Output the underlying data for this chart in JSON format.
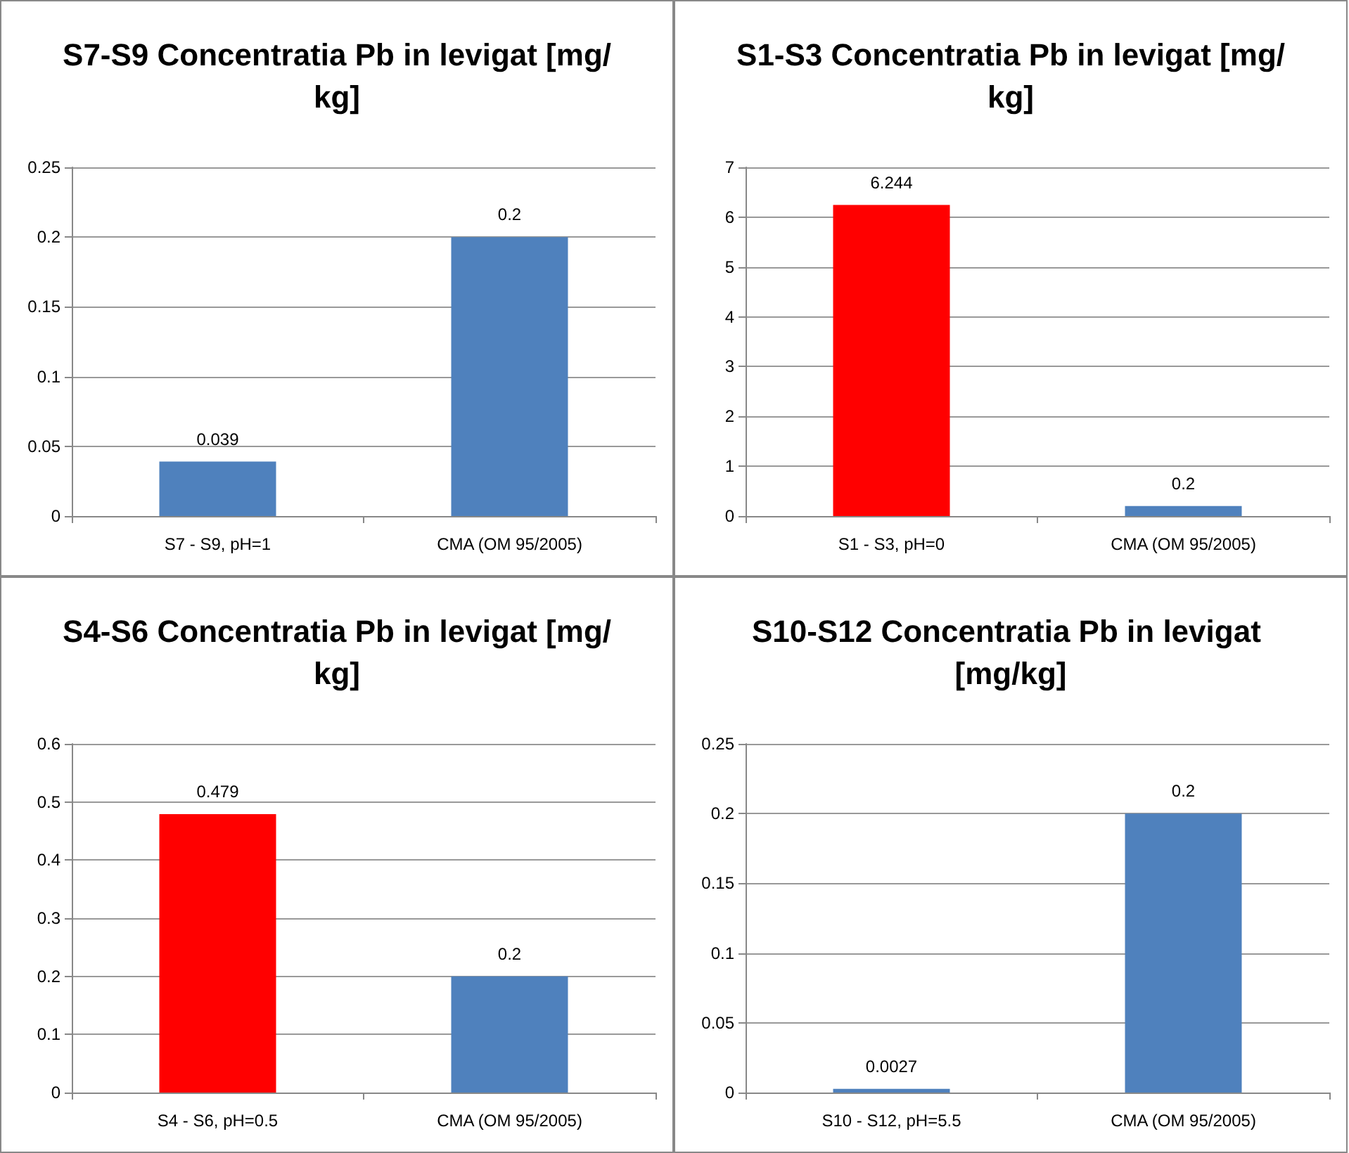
{
  "chart_data": [
    {
      "type": "bar",
      "title": "S7-S9 Concentratia Pb in levigat [mg/kg]",
      "categories": [
        "S7 - S9, pH=1",
        "CMA (OM 95/2005)"
      ],
      "values": [
        0.039,
        0.2
      ],
      "colors": [
        "#4f81bd",
        "#4f81bd"
      ],
      "ylim": [
        0,
        0.25
      ],
      "yticks": [
        0,
        0.05,
        0.1,
        0.15,
        0.2,
        0.25
      ],
      "grid": "y",
      "data_labels": true
    },
    {
      "type": "bar",
      "title": "S1-S3 Concentratia Pb in levigat [mg/kg]",
      "categories": [
        "S1 - S3, pH=0",
        "CMA (OM 95/2005)"
      ],
      "values": [
        6.244,
        0.2
      ],
      "colors": [
        "#ff0000",
        "#4f81bd"
      ],
      "ylim": [
        0,
        7
      ],
      "yticks": [
        0,
        1,
        2,
        3,
        4,
        5,
        6,
        7
      ],
      "grid": "y",
      "data_labels": true
    },
    {
      "type": "bar",
      "title": "S4-S6 Concentratia Pb in levigat [mg/kg]",
      "categories": [
        "S4 - S6, pH=0.5",
        "CMA (OM 95/2005)"
      ],
      "values": [
        0.479,
        0.2
      ],
      "colors": [
        "#ff0000",
        "#4f81bd"
      ],
      "ylim": [
        0,
        0.6
      ],
      "yticks": [
        0,
        0.1,
        0.2,
        0.3,
        0.4,
        0.5,
        0.6
      ],
      "grid": "y",
      "data_labels": true
    },
    {
      "type": "bar",
      "title": "S10-S12 Concentratia Pb in levigat [mg/kg]",
      "categories": [
        "S10 - S12, pH=5.5",
        "CMA (OM 95/2005)"
      ],
      "values": [
        0.0027,
        0.2
      ],
      "colors": [
        "#4f81bd",
        "#4f81bd"
      ],
      "ylim": [
        0,
        0.25
      ],
      "yticks": [
        0,
        0.05,
        0.1,
        0.15,
        0.2,
        0.25
      ],
      "grid": "y",
      "data_labels": true
    }
  ]
}
